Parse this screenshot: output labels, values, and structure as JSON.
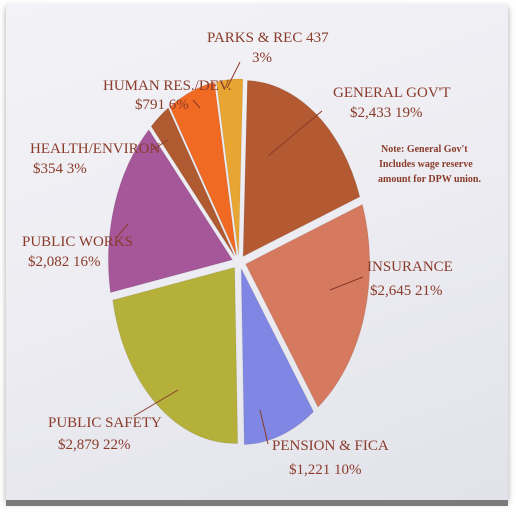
{
  "chart_data": {
    "type": "pie",
    "title": "",
    "slices": [
      {
        "label": "GENERAL GOV'T",
        "amount": "$2,433",
        "percent": "19%",
        "value": 2433,
        "color": "#b35a32"
      },
      {
        "label": "INSURANCE",
        "amount": "$2,645",
        "percent": "21%",
        "value": 2645,
        "color": "#d5795f"
      },
      {
        "label": "PENSION & FICA",
        "amount": "$1,221",
        "percent": "10%",
        "value": 1221,
        "color": "#7f86e3"
      },
      {
        "label": "PUBLIC SAFETY",
        "amount": "$2,879",
        "percent": "22%",
        "value": 2879,
        "color": "#b4b03a"
      },
      {
        "label": "PUBLIC WORKS",
        "amount": "$2,082",
        "percent": "16%",
        "value": 2082,
        "color": "#a5579a"
      },
      {
        "label": "HEALTH/ENVIRON",
        "amount": "$354",
        "percent": "3%",
        "value": 354,
        "color": "#b05a32"
      },
      {
        "label": "HUMAN RES./DEV.",
        "amount": "$791",
        "percent": "6%",
        "value": 791,
        "color": "#f16a24"
      },
      {
        "label": "PARKS & REC",
        "amount": "437",
        "percent": "3%",
        "value": 437,
        "color": "#e9a531"
      }
    ],
    "note_lines": [
      "Note: General Gov't",
      "Includes wage reserve",
      "amount for DPW union."
    ]
  }
}
